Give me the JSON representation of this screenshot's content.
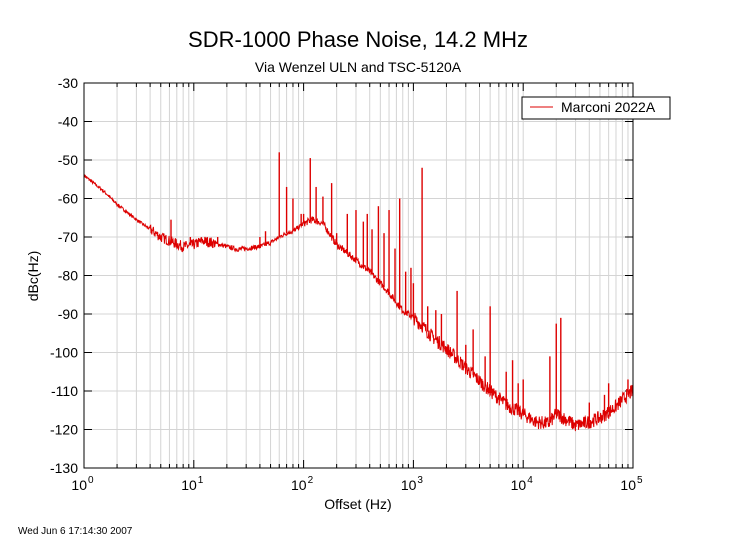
{
  "chart_data": {
    "type": "line",
    "title": "SDR-1000 Phase Noise, 14.2 MHz",
    "subtitle": "Via Wenzel ULN and TSC-5120A",
    "xlabel": "Offset (Hz)",
    "ylabel": "dBc(Hz)",
    "x_scale": "log",
    "xlim": [
      1,
      100000
    ],
    "ylim": [
      -130,
      -30
    ],
    "x_tick_labels": [
      {
        "base": "10",
        "exp": "0"
      },
      {
        "base": "10",
        "exp": "1"
      },
      {
        "base": "10",
        "exp": "2"
      },
      {
        "base": "10",
        "exp": "3"
      },
      {
        "base": "10",
        "exp": "4"
      },
      {
        "base": "10",
        "exp": "5"
      }
    ],
    "y_ticks": [
      -30,
      -40,
      -50,
      -60,
      -70,
      -80,
      -90,
      -100,
      -110,
      -120,
      -130
    ],
    "grid": true,
    "legend_position": "top-right",
    "series": [
      {
        "name": "Marconi 2022A",
        "color": "#dd0000",
        "points": [
          [
            1,
            -54
          ],
          [
            1.5,
            -58
          ],
          [
            2,
            -61.5
          ],
          [
            3,
            -65.5
          ],
          [
            4,
            -68
          ],
          [
            5,
            -70
          ],
          [
            6,
            -71
          ],
          [
            8,
            -72.5
          ],
          [
            10,
            -72
          ],
          [
            12,
            -71
          ],
          [
            15,
            -71.5
          ],
          [
            20,
            -72.5
          ],
          [
            25,
            -73.2
          ],
          [
            30,
            -73
          ],
          [
            40,
            -72.5
          ],
          [
            50,
            -71.5
          ],
          [
            60,
            -70
          ],
          [
            70,
            -69
          ],
          [
            80,
            -68.5
          ],
          [
            90,
            -67.5
          ],
          [
            100,
            -66.5
          ],
          [
            120,
            -65.5
          ],
          [
            150,
            -66.5
          ],
          [
            180,
            -70
          ],
          [
            200,
            -72
          ],
          [
            300,
            -76
          ],
          [
            400,
            -79
          ],
          [
            500,
            -82
          ],
          [
            600,
            -84.5
          ],
          [
            700,
            -87
          ],
          [
            800,
            -89
          ],
          [
            1000,
            -91
          ],
          [
            1200,
            -93
          ],
          [
            1500,
            -96
          ],
          [
            2000,
            -99
          ],
          [
            3000,
            -104
          ],
          [
            5000,
            -110
          ],
          [
            7000,
            -113.5
          ],
          [
            10000,
            -116
          ],
          [
            13000,
            -118
          ],
          [
            17000,
            -118.5
          ],
          [
            20000,
            -116
          ],
          [
            25000,
            -117.5
          ],
          [
            30000,
            -119
          ],
          [
            40000,
            -118
          ],
          [
            50000,
            -117
          ],
          [
            60000,
            -115.5
          ],
          [
            70000,
            -114
          ],
          [
            85000,
            -111.5
          ],
          [
            100000,
            -110
          ]
        ],
        "spurs": [
          [
            6.2,
            -65.5
          ],
          [
            9.3,
            -70
          ],
          [
            16.5,
            -70
          ],
          [
            40,
            -70
          ],
          [
            45,
            -68.5
          ],
          [
            60,
            -48
          ],
          [
            70,
            -57
          ],
          [
            80,
            -60
          ],
          [
            95,
            -64
          ],
          [
            100,
            -64
          ],
          [
            115,
            -49.5
          ],
          [
            130,
            -57
          ],
          [
            150,
            -59.5
          ],
          [
            180,
            -56
          ],
          [
            200,
            -69
          ],
          [
            250,
            -64
          ],
          [
            300,
            -63
          ],
          [
            350,
            -66
          ],
          [
            380,
            -64
          ],
          [
            420,
            -68
          ],
          [
            480,
            -62
          ],
          [
            540,
            -69
          ],
          [
            600,
            -63
          ],
          [
            680,
            -73
          ],
          [
            750,
            -60
          ],
          [
            850,
            -79
          ],
          [
            950,
            -78
          ],
          [
            1000,
            -82
          ],
          [
            1200,
            -52
          ],
          [
            1350,
            -88
          ],
          [
            1600,
            -89
          ],
          [
            1800,
            -90
          ],
          [
            2500,
            -84
          ],
          [
            3000,
            -98
          ],
          [
            3500,
            -94
          ],
          [
            4500,
            -101
          ],
          [
            5000,
            -88
          ],
          [
            7000,
            -105
          ],
          [
            8000,
            -102
          ],
          [
            9000,
            -108
          ],
          [
            10000,
            -107
          ],
          [
            17500,
            -101
          ],
          [
            20000,
            -92.5
          ],
          [
            22000,
            -91
          ],
          [
            40000,
            -113
          ],
          [
            55000,
            -111
          ],
          [
            60000,
            -108
          ],
          [
            90000,
            -107
          ]
        ]
      }
    ]
  },
  "footer": {
    "timestamp": "Wed Jun  6 17:14:30 2007"
  }
}
